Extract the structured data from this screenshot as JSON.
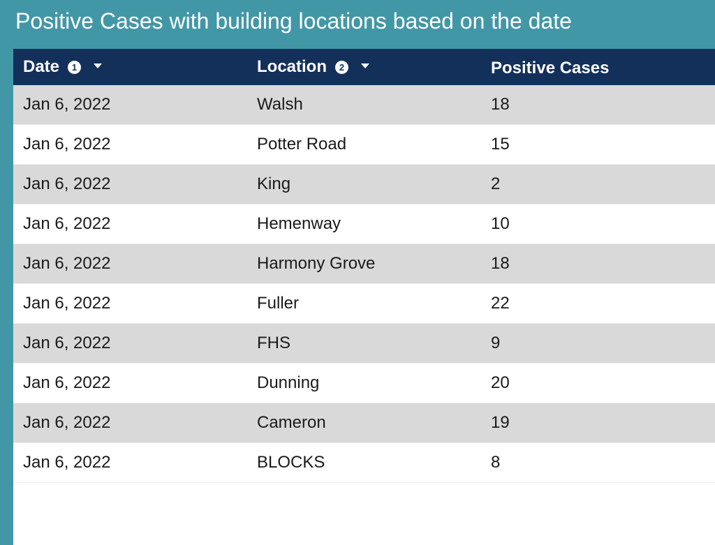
{
  "title": "Positive Cases with building locations based on the date",
  "colors": {
    "outer_bg": "#4297a7",
    "header_bg": "#13305b",
    "row_alt_bg": "#d9d9d9"
  },
  "table": {
    "columns": [
      {
        "label": "Date",
        "badge": "1",
        "sort_icon": "caret-down-icon"
      },
      {
        "label": "Location",
        "badge": "2",
        "sort_icon": "caret-down-icon"
      },
      {
        "label": "Positive Cases"
      }
    ],
    "rows": [
      {
        "date": "Jan 6, 2022",
        "location": "Walsh",
        "positive": "18"
      },
      {
        "date": "Jan 6, 2022",
        "location": "Potter Road",
        "positive": "15"
      },
      {
        "date": "Jan 6, 2022",
        "location": "King",
        "positive": "2"
      },
      {
        "date": "Jan 6, 2022",
        "location": "Hemenway",
        "positive": "10"
      },
      {
        "date": "Jan 6, 2022",
        "location": "Harmony Grove",
        "positive": "18"
      },
      {
        "date": "Jan 6, 2022",
        "location": "Fuller",
        "positive": "22"
      },
      {
        "date": "Jan 6, 2022",
        "location": "FHS",
        "positive": "9"
      },
      {
        "date": "Jan 6, 2022",
        "location": "Dunning",
        "positive": "20"
      },
      {
        "date": "Jan 6, 2022",
        "location": "Cameron",
        "positive": "19"
      },
      {
        "date": "Jan 6, 2022",
        "location": "BLOCKS",
        "positive": "8"
      }
    ]
  }
}
